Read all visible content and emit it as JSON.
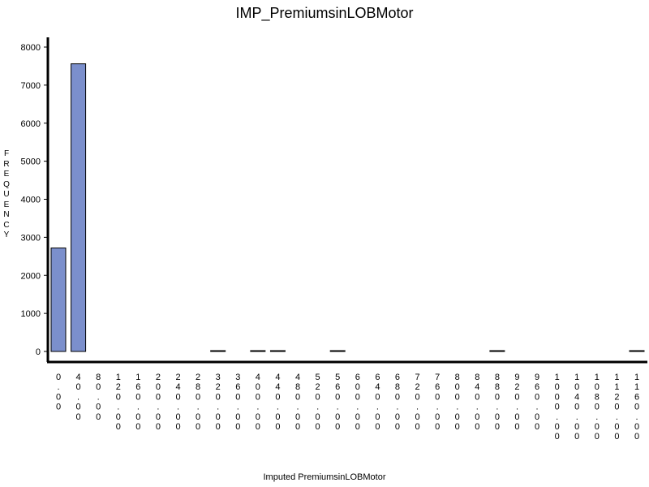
{
  "chart_data": {
    "type": "bar",
    "title": "IMP_PremiumsinLOBMotor",
    "xlabel": "Imputed PremiumsinLOBMotor",
    "ylabel": "FREQUENCY",
    "ylim": [
      0,
      8300
    ],
    "yticks": [
      0,
      1000,
      2000,
      3000,
      4000,
      5000,
      6000,
      7000,
      8000
    ],
    "grid": false,
    "categories": [
      "0.00",
      "40.00",
      "80.00",
      "120.00",
      "160.00",
      "200.00",
      "240.00",
      "280.00",
      "320.00",
      "360.00",
      "400.00",
      "440.00",
      "480.00",
      "520.00",
      "560.00",
      "600.00",
      "640.00",
      "680.00",
      "720.00",
      "760.00",
      "800.00",
      "840.00",
      "880.00",
      "920.00",
      "960.00",
      "1000.00",
      "1040.00",
      "1080.00",
      "1120.00",
      "1160.00"
    ],
    "values": [
      2720,
      7560,
      0,
      0,
      0,
      0,
      0,
      0,
      3,
      0,
      2,
      2,
      0,
      0,
      2,
      0,
      0,
      0,
      0,
      0,
      0,
      0,
      1,
      0,
      0,
      0,
      0,
      0,
      0,
      1
    ],
    "bar_color": "#7b8fcc"
  }
}
